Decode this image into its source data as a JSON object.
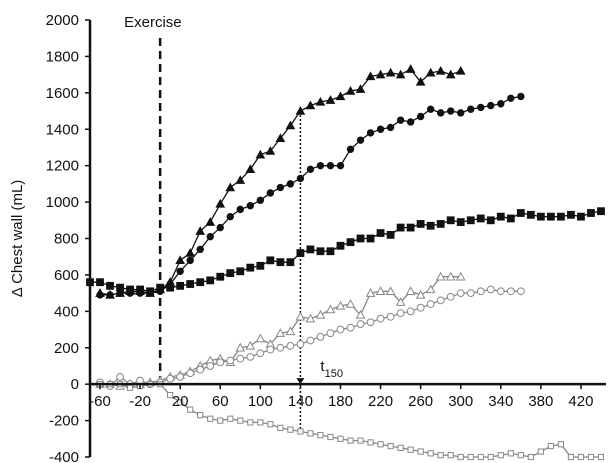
{
  "chart_data": {
    "type": "line",
    "ylabel": "Δ Chest wall (mL)",
    "xlim": [
      -70,
      445
    ],
    "ylim": [
      -400,
      2000
    ],
    "x_ticks": [
      -60,
      -20,
      20,
      60,
      100,
      140,
      180,
      220,
      260,
      300,
      340,
      380,
      420
    ],
    "x_tick_labels": [
      "-60",
      "-20",
      "20",
      "60",
      "100",
      "140",
      "180",
      "220",
      "260",
      "300",
      "340",
      "380",
      "420"
    ],
    "y_ticks": [
      -400,
      -200,
      0,
      200,
      400,
      600,
      800,
      1000,
      1200,
      1400,
      1600,
      1800,
      2000
    ],
    "y_tick_labels": [
      "-400",
      "-200",
      "0",
      "200",
      "400",
      "600",
      "800",
      "1000",
      "1200",
      "1400",
      "1600",
      "1800",
      "2000"
    ],
    "exercise_line_x": 0,
    "exercise_label": "Exercise",
    "t150_x": 140,
    "t150_label": "t",
    "t150_sub": "150",
    "series": [
      {
        "marker": "triangle-filled",
        "color": "#111111",
        "x": [
          -60,
          -50,
          -40,
          -30,
          -20,
          -10,
          0,
          10,
          20,
          30,
          40,
          50,
          60,
          70,
          80,
          90,
          100,
          110,
          120,
          130,
          140,
          150,
          160,
          170,
          180,
          190,
          200,
          210,
          220,
          230,
          240,
          250,
          260,
          270,
          280,
          290,
          300
        ],
        "y": [
          500,
          490,
          500,
          510,
          510,
          500,
          520,
          560,
          680,
          720,
          840,
          890,
          990,
          1080,
          1120,
          1180,
          1260,
          1280,
          1350,
          1420,
          1500,
          1530,
          1550,
          1560,
          1580,
          1610,
          1620,
          1690,
          1700,
          1710,
          1700,
          1730,
          1660,
          1710,
          1720,
          1700,
          1720
        ]
      },
      {
        "marker": "circle-filled",
        "color": "#111111",
        "x": [
          -60,
          -50,
          -40,
          -30,
          -20,
          -10,
          0,
          10,
          20,
          30,
          40,
          50,
          60,
          70,
          80,
          90,
          100,
          110,
          120,
          130,
          140,
          150,
          160,
          170,
          180,
          190,
          200,
          210,
          220,
          230,
          240,
          250,
          260,
          270,
          280,
          290,
          300,
          310,
          320,
          330,
          340,
          350,
          360
        ],
        "y": [
          490,
          490,
          500,
          500,
          500,
          500,
          510,
          550,
          620,
          680,
          740,
          810,
          860,
          920,
          960,
          980,
          1010,
          1050,
          1080,
          1100,
          1130,
          1180,
          1200,
          1200,
          1200,
          1290,
          1340,
          1380,
          1400,
          1410,
          1450,
          1440,
          1470,
          1510,
          1490,
          1500,
          1490,
          1510,
          1520,
          1530,
          1540,
          1570,
          1580
        ]
      },
      {
        "marker": "square-filled",
        "color": "#111111",
        "x": [
          -70,
          -60,
          -50,
          -40,
          -30,
          -20,
          -10,
          0,
          10,
          20,
          30,
          40,
          50,
          60,
          70,
          80,
          90,
          100,
          110,
          120,
          130,
          140,
          150,
          160,
          170,
          180,
          190,
          200,
          210,
          220,
          230,
          240,
          250,
          260,
          270,
          280,
          290,
          300,
          310,
          320,
          330,
          340,
          350,
          360,
          370,
          380,
          390,
          400,
          410,
          420,
          430,
          440
        ],
        "y": [
          560,
          560,
          540,
          530,
          520,
          520,
          510,
          530,
          530,
          540,
          550,
          560,
          570,
          590,
          610,
          620,
          640,
          650,
          680,
          670,
          670,
          720,
          740,
          730,
          730,
          760,
          780,
          800,
          800,
          830,
          820,
          860,
          860,
          880,
          870,
          880,
          900,
          890,
          900,
          910,
          900,
          920,
          910,
          940,
          930,
          920,
          920,
          920,
          930,
          920,
          940,
          950
        ]
      },
      {
        "marker": "triangle-open",
        "color": "#888888",
        "x": [
          -60,
          -50,
          -40,
          -30,
          -20,
          -10,
          0,
          10,
          20,
          30,
          40,
          50,
          60,
          70,
          80,
          90,
          100,
          110,
          120,
          130,
          140,
          150,
          160,
          170,
          180,
          190,
          200,
          210,
          220,
          230,
          240,
          250,
          260,
          270,
          280,
          290,
          300
        ],
        "y": [
          0,
          0,
          -10,
          0,
          0,
          10,
          20,
          40,
          50,
          70,
          100,
          130,
          140,
          120,
          200,
          210,
          250,
          220,
          280,
          290,
          370,
          360,
          380,
          410,
          430,
          440,
          380,
          500,
          510,
          510,
          450,
          510,
          490,
          520,
          590,
          590,
          590
        ]
      },
      {
        "marker": "circle-open",
        "color": "#888888",
        "x": [
          -60,
          -50,
          -40,
          -30,
          -20,
          -10,
          0,
          10,
          20,
          30,
          40,
          50,
          60,
          70,
          80,
          90,
          100,
          110,
          120,
          130,
          140,
          150,
          160,
          170,
          180,
          190,
          200,
          210,
          220,
          230,
          240,
          250,
          260,
          270,
          280,
          290,
          300,
          310,
          320,
          330,
          340,
          350,
          360
        ],
        "y": [
          10,
          -10,
          40,
          0,
          20,
          0,
          10,
          30,
          40,
          60,
          80,
          100,
          120,
          130,
          140,
          150,
          170,
          190,
          200,
          210,
          220,
          240,
          260,
          280,
          300,
          310,
          330,
          340,
          360,
          370,
          390,
          400,
          420,
          440,
          460,
          480,
          500,
          500,
          510,
          520,
          510,
          510,
          510
        ]
      },
      {
        "marker": "square-open",
        "color": "#888888",
        "x": [
          -60,
          -50,
          -40,
          -30,
          -20,
          -10,
          0,
          10,
          20,
          30,
          40,
          50,
          60,
          70,
          80,
          90,
          100,
          110,
          120,
          130,
          140,
          150,
          160,
          170,
          180,
          190,
          200,
          210,
          220,
          230,
          240,
          250,
          260,
          270,
          280,
          290,
          300,
          310,
          320,
          330,
          340,
          350,
          360,
          370,
          380,
          390,
          400,
          410,
          420,
          430,
          440
        ],
        "y": [
          0,
          0,
          0,
          -20,
          -10,
          0,
          0,
          -60,
          -100,
          -140,
          -170,
          -190,
          -200,
          -190,
          -200,
          -210,
          -210,
          -220,
          -240,
          -250,
          -260,
          -270,
          -280,
          -290,
          -300,
          -310,
          -310,
          -320,
          -330,
          -340,
          -350,
          -360,
          -370,
          -380,
          -390,
          -390,
          -400,
          -400,
          -400,
          -400,
          -390,
          -380,
          -390,
          -400,
          -370,
          -340,
          -330,
          -400,
          -400,
          -400,
          -400
        ]
      }
    ]
  }
}
